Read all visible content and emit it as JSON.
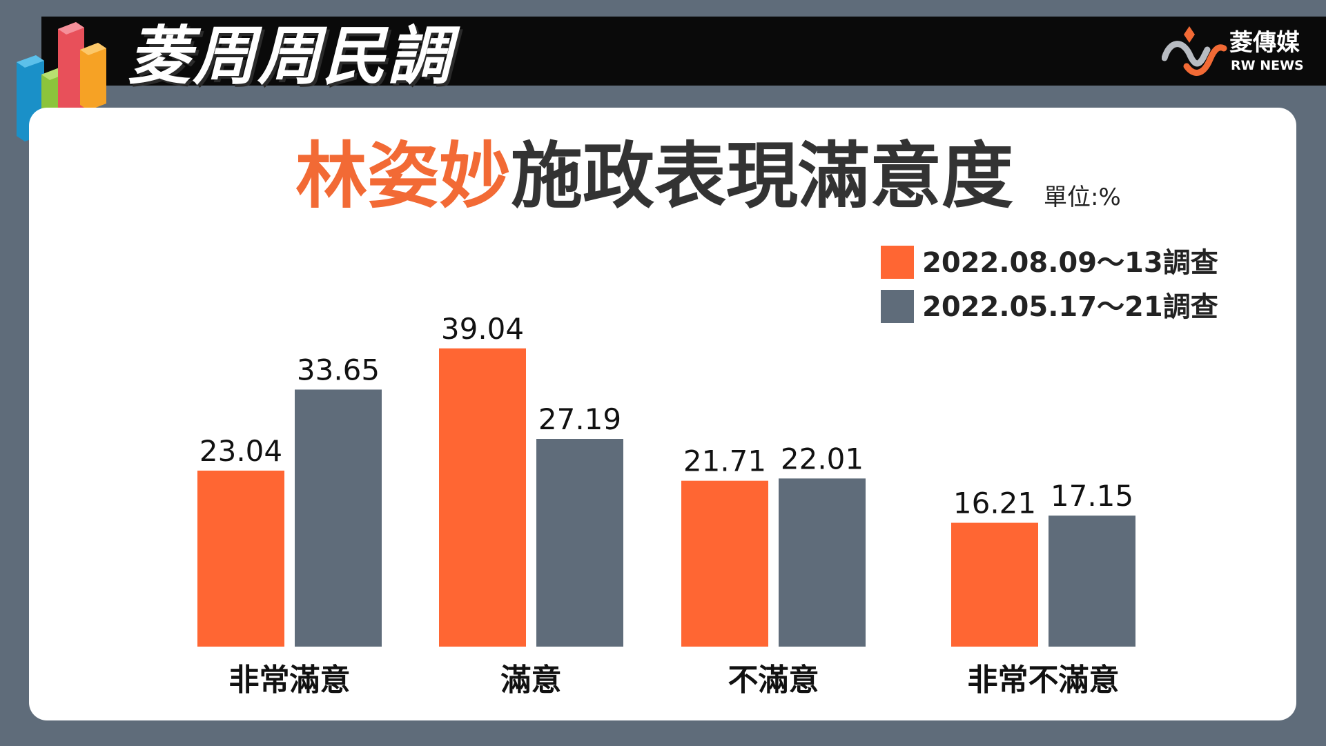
{
  "header": {
    "title": "菱周周民調",
    "brand_name": "菱傳媒",
    "brand_sub": "RW NEWS"
  },
  "colors": {
    "accent": "#f26a35",
    "series_current": "#ff6633",
    "series_previous": "#5f6c7a",
    "background": "#5f6c7a"
  },
  "chart_data": {
    "type": "bar",
    "title_name": "林姿妙",
    "title_rest": "施政表現滿意度",
    "unit": "單位:%",
    "categories": [
      "非常滿意",
      "滿意",
      "不滿意",
      "非常不滿意"
    ],
    "series": [
      {
        "name": "2022.08.09～13調查",
        "values": [
          23.04,
          39.04,
          21.71,
          16.21
        ]
      },
      {
        "name": "2022.05.17～21調查",
        "values": [
          33.65,
          27.19,
          22.01,
          17.15
        ]
      }
    ],
    "value_labels": [
      [
        "23.04",
        "39.04",
        "21.71",
        "16.21"
      ],
      [
        "33.65",
        "27.19",
        "22.01",
        "17.15"
      ]
    ],
    "legend_position": "top-right",
    "grid": false
  }
}
